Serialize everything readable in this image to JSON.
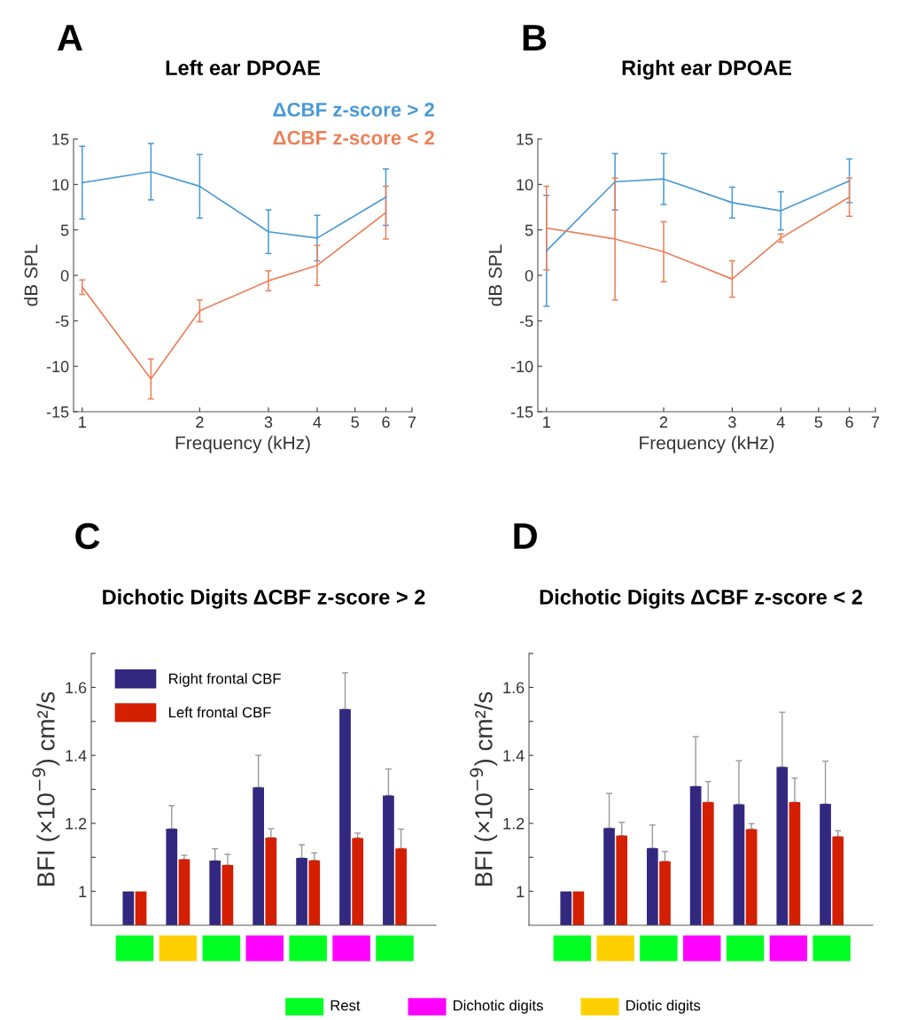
{
  "chart_data": [
    {
      "type": "line",
      "title": "Left ear DPOAE",
      "xlabel": "Frequency (kHz)",
      "ylabel": "dB SPL",
      "annotations": [
        "A"
      ],
      "log": "x",
      "legend": "top right",
      "marker": "none",
      "line_style": "solid",
      "x": [
        1,
        1.5,
        2,
        3,
        4,
        6
      ],
      "xlim": [
        0.95,
        7
      ],
      "xticks": [
        1,
        2,
        3,
        4,
        5,
        6,
        7
      ],
      "ylim": [
        -15,
        15
      ],
      "yticks": [
        -15,
        -10,
        -5,
        0,
        5,
        10,
        15
      ],
      "series": [
        {
          "name": "ΔCBF z-score > 2",
          "color": "#4a9ad6",
          "values": [
            10.2,
            11.4,
            9.8,
            4.8,
            4.1,
            8.6
          ],
          "errors": [
            4.0,
            3.1,
            3.5,
            2.4,
            2.5,
            3.1
          ]
        },
        {
          "name": "ΔCBF z-score < 2",
          "color": "#ec8059",
          "values": [
            -1.3,
            -11.4,
            -3.9,
            -0.6,
            1.1,
            6.9
          ],
          "errors": [
            0.8,
            2.2,
            1.2,
            1.1,
            2.2,
            2.9
          ]
        }
      ]
    },
    {
      "type": "line",
      "title": "Right ear DPOAE",
      "xlabel": "Frequency (kHz)",
      "ylabel": "dB SPL",
      "annotations": [
        "B"
      ],
      "log": "x",
      "marker": "none",
      "line_style": "solid",
      "x": [
        1,
        1.5,
        2,
        3,
        4,
        6
      ],
      "xlim": [
        0.95,
        7
      ],
      "xticks": [
        1,
        2,
        3,
        4,
        5,
        6,
        7
      ],
      "ylim": [
        -15,
        15
      ],
      "yticks": [
        -15,
        -10,
        -5,
        0,
        5,
        10,
        15
      ],
      "series": [
        {
          "color": "#4a9ad6",
          "values": [
            2.7,
            10.3,
            10.6,
            8.0,
            7.1,
            10.4
          ],
          "errors": [
            6.1,
            3.1,
            2.8,
            1.7,
            2.1,
            2.4
          ]
        },
        {
          "color": "#ec8059",
          "values": [
            5.2,
            4.0,
            2.6,
            -0.4,
            4.1,
            8.6
          ],
          "errors": [
            4.6,
            6.7,
            3.3,
            2.0,
            0.45,
            2.1
          ]
        }
      ]
    },
    {
      "type": "bar",
      "title": "Dichotic Digits ΔCBF z-score > 2",
      "ylabel": "BFI (×10$^{−9}$) cm²/s",
      "annotations": [
        "C"
      ],
      "legend": "top left",
      "categories": [
        null,
        null,
        null,
        null,
        null,
        null,
        null
      ],
      "colors": [
        "#00ff22",
        "#ffd000",
        "#00ff22",
        "#ff00ff",
        "#00ff22",
        "#ff00ff",
        "#00ff22"
      ],
      "ylim": [
        0.9,
        1.7
      ],
      "yticks": [
        1,
        {
          "value": 1.1,
          "label": null
        },
        1.2,
        {
          "value": 1.3,
          "label": null
        },
        1.4,
        {
          "value": 1.5,
          "label": null
        },
        1.6,
        {
          "value": 1.7,
          "label": null
        }
      ],
      "series": [
        {
          "name": "Right frontal CBF",
          "color": "#33287f",
          "values": [
            1.0,
            1.184,
            1.09,
            1.306,
            1.098,
            1.536,
            1.282
          ],
          "errors": [
            null,
            [
              1.184,
              1.252
            ],
            [
              1.09,
              1.125
            ],
            [
              1.306,
              1.4
            ],
            [
              1.098,
              1.137
            ],
            [
              1.536,
              1.643
            ],
            [
              1.282,
              1.36
            ]
          ]
        },
        {
          "name": "Left frontal CBF",
          "color": "#d41f00",
          "values": [
            1.0,
            1.094,
            1.077,
            1.158,
            1.091,
            1.157,
            1.126
          ],
          "errors": [
            null,
            [
              1.094,
              1.106
            ],
            [
              1.077,
              1.109
            ],
            [
              1.158,
              1.184
            ],
            [
              1.091,
              1.113
            ],
            [
              1.157,
              1.171
            ],
            [
              1.126,
              1.183
            ]
          ]
        }
      ]
    },
    {
      "type": "bar",
      "title": "Dichotic Digits ΔCBF z-score < 2",
      "ylabel": "BFI (×10$^{−9}$) cm²/s",
      "annotations": [
        "D"
      ],
      "categories": [
        null,
        null,
        null,
        null,
        null,
        null,
        null
      ],
      "colors": [
        "#00ff22",
        "#ffd000",
        "#00ff22",
        "#ff00ff",
        "#00ff22",
        "#ff00ff",
        "#00ff22"
      ],
      "ylim": [
        0.9,
        1.7
      ],
      "yticks": [
        1,
        {
          "value": 1.1,
          "label": null
        },
        1.2,
        {
          "value": 1.3,
          "label": null
        },
        1.4,
        {
          "value": 1.5,
          "label": null
        },
        1.6,
        {
          "value": 1.7,
          "label": null
        }
      ],
      "series": [
        {
          "color": "#33287f",
          "values": [
            1.0,
            1.186,
            1.127,
            1.309,
            1.256,
            1.366,
            1.257
          ],
          "errors": [
            null,
            [
              1.186,
              1.288
            ],
            [
              1.127,
              1.195
            ],
            [
              1.309,
              1.455
            ],
            [
              1.256,
              1.384
            ],
            [
              1.366,
              1.527
            ],
            [
              1.257,
              1.383
            ]
          ]
        },
        {
          "color": "#d41f00",
          "values": [
            1.0,
            1.164,
            1.088,
            1.262,
            1.183,
            1.262,
            1.161
          ],
          "errors": [
            null,
            [
              1.164,
              1.203
            ],
            [
              1.088,
              1.117
            ],
            [
              1.262,
              1.323
            ],
            [
              1.183,
              1.199
            ],
            [
              1.262,
              1.333
            ],
            [
              1.161,
              1.178
            ]
          ]
        }
      ]
    },
    {
      "type": "other",
      "categories": [
        "Rest",
        "Dichotic digits",
        "Diotic digits"
      ],
      "colors": [
        "#00ff22",
        "#ff00ff",
        "#ffd000"
      ]
    }
  ]
}
